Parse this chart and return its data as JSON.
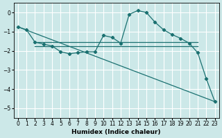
{
  "xlabel": "Humidex (Indice chaleur)",
  "bg_color": "#cce8e8",
  "grid_color": "#ffffff",
  "line_color": "#1a7070",
  "xlim": [
    -0.5,
    23.5
  ],
  "ylim": [
    -5.5,
    0.5
  ],
  "yticks": [
    0,
    -1,
    -2,
    -3,
    -4,
    -5
  ],
  "xticks": [
    0,
    1,
    2,
    3,
    4,
    5,
    6,
    7,
    8,
    9,
    10,
    11,
    12,
    13,
    14,
    15,
    16,
    17,
    18,
    19,
    20,
    21,
    22,
    23
  ],
  "curve1_x": [
    0,
    1,
    2,
    3,
    4,
    5,
    6,
    7,
    8,
    9,
    10,
    11,
    12,
    13,
    14,
    15,
    16,
    17,
    18,
    19,
    20,
    21,
    22,
    23
  ],
  "curve1_y": [
    -0.75,
    -0.9,
    -1.55,
    -1.65,
    -1.75,
    -2.05,
    -2.15,
    -2.1,
    -2.05,
    -2.05,
    -1.2,
    -1.3,
    -1.6,
    -0.1,
    0.1,
    0.0,
    -0.5,
    -0.9,
    -1.15,
    -1.35,
    -1.6,
    -2.1,
    -3.45,
    -4.65
  ],
  "curve2_x": [
    2,
    21
  ],
  "curve2_y": [
    -1.55,
    -1.55
  ],
  "curve3_x": [
    2,
    21
  ],
  "curve3_y": [
    -1.75,
    -1.75
  ],
  "curve4_x": [
    0,
    23
  ],
  "curve4_y": [
    -0.75,
    -4.65
  ]
}
